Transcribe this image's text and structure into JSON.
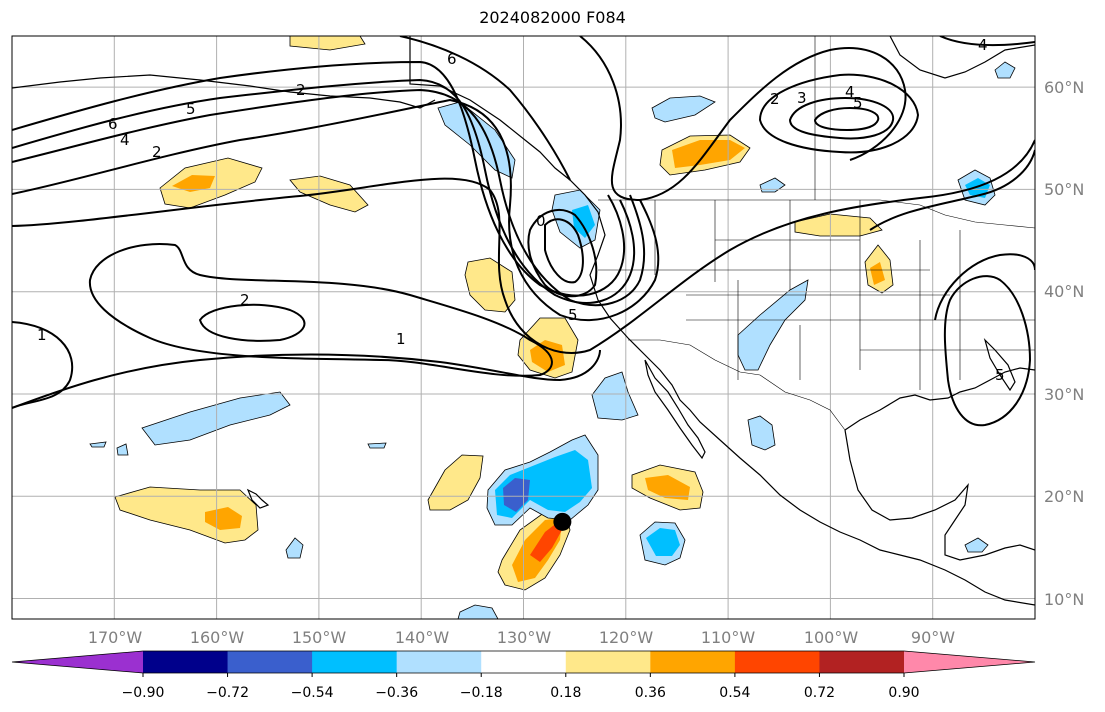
{
  "title": "2024082000 F084",
  "map": {
    "lon_range": [
      -180,
      -80
    ],
    "lat_range": [
      8,
      65
    ],
    "lat_labels": [
      "10°N",
      "20°N",
      "30°N",
      "40°N",
      "50°N",
      "60°N"
    ],
    "lon_labels": [
      "170°W",
      "160°W",
      "150°W",
      "140°W",
      "130°W",
      "120°W",
      "110°W",
      "100°W",
      "90°W"
    ],
    "contour_labels": [
      "1",
      "1",
      "2",
      "2",
      "4",
      "6",
      "5",
      "2",
      "6",
      "5",
      "0",
      "2",
      "3",
      "4",
      "5",
      "4",
      "5"
    ],
    "marker": {
      "lon": -126.2,
      "lat": 17.5,
      "color": "#000000"
    }
  },
  "colorbar": {
    "levels": [
      "−0.90",
      "−0.72",
      "−0.54",
      "−0.36",
      "−0.18",
      "0.18",
      "0.36",
      "0.54",
      "0.72",
      "0.90"
    ],
    "colors": [
      "#9b30d0",
      "#00008b",
      "#3a5fcd",
      "#00bfff",
      "#b0e0ff",
      "#ffffff",
      "#ffe88a",
      "#ffa500",
      "#ff4500",
      "#b22222",
      "#ff88aa"
    ]
  },
  "colors": {
    "light_yellow": "#ffe88a",
    "orange": "#ffa500",
    "red_orange": "#ff4500",
    "light_blue": "#b0e0ff",
    "sky_blue": "#00bfff",
    "royal_blue": "#3a5fcd",
    "grid": "#b0b0b0",
    "axis_text": "#808080"
  }
}
